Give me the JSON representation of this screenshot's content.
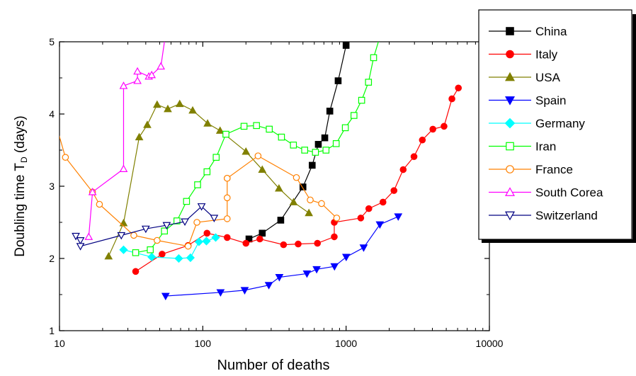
{
  "chart_data": {
    "type": "line",
    "x_scale": "log",
    "xlabel": "Number of deaths",
    "ylabel_main": "Doubling time T",
    "ylabel_sub": "D",
    "ylabel_unit": " (days)",
    "xlim": [
      10,
      10000
    ],
    "ylim": [
      1,
      5
    ],
    "x_ticks": [
      10,
      100,
      1000,
      10000
    ],
    "x_tick_labels": [
      "10",
      "100",
      "1000",
      "10000"
    ],
    "y_ticks": [
      1,
      2,
      3,
      4,
      5
    ],
    "y_tick_labels": [
      "1",
      "2",
      "3",
      "4",
      "5"
    ],
    "grid": false,
    "legend_position": "top-right, outside plot",
    "series": [
      {
        "name": "China",
        "color": "#000000",
        "marker": "square",
        "filled": true,
        "x": [
          210,
          260,
          350,
          500,
          580,
          640,
          710,
          770,
          880,
          1000
        ],
        "y": [
          2.27,
          2.35,
          2.53,
          2.99,
          3.29,
          3.58,
          3.67,
          4.04,
          4.46,
          4.95
        ],
        "tail": [
          1010,
          5.0
        ]
      },
      {
        "name": "Italy",
        "color": "#ff0000",
        "marker": "circle",
        "filled": true,
        "x": [
          34,
          52,
          79,
          107,
          148,
          200,
          250,
          366,
          463,
          631,
          827,
          827,
          1266,
          1441,
          1809,
          2158,
          2503,
          2978,
          3405,
          4032,
          4825,
          5476,
          6077
        ],
        "y": [
          1.82,
          2.06,
          2.18,
          2.35,
          2.29,
          2.21,
          2.27,
          2.19,
          2.2,
          2.21,
          2.3,
          2.5,
          2.56,
          2.69,
          2.78,
          2.94,
          3.23,
          3.41,
          3.64,
          3.79,
          3.83,
          4.21,
          4.36
        ]
      },
      {
        "name": "USA",
        "color": "#808000",
        "marker": "triangle-up",
        "filled": true,
        "x": [
          22,
          28,
          36,
          41,
          48,
          57,
          69,
          85,
          108,
          132,
          200,
          260,
          340,
          430,
          550
        ],
        "y": [
          2.03,
          2.49,
          3.68,
          3.85,
          4.13,
          4.07,
          4.14,
          4.05,
          3.87,
          3.77,
          3.48,
          3.23,
          2.97,
          2.78,
          2.63
        ]
      },
      {
        "name": "Spain",
        "color": "#0000ff",
        "marker": "triangle-down",
        "filled": true,
        "x": [
          55,
          133,
          196,
          289,
          342,
          533,
          623,
          830,
          1002,
          1326,
          1720,
          2311
        ],
        "y": [
          1.48,
          1.53,
          1.56,
          1.63,
          1.74,
          1.79,
          1.85,
          1.89,
          2.02,
          2.15,
          2.47,
          2.58
        ]
      },
      {
        "name": "Germany",
        "color": "#00ffff",
        "marker": "diamond",
        "filled": true,
        "x": [
          28,
          44,
          68,
          82,
          94,
          106,
          123
        ],
        "y": [
          2.12,
          2.02,
          2.0,
          2.01,
          2.23,
          2.24,
          2.29
        ]
      },
      {
        "name": "Iran",
        "color": "#00ff00",
        "marker": "square",
        "filled": false,
        "x": [
          34,
          43,
          54,
          66,
          77,
          92,
          107,
          124,
          145,
          194,
          237,
          291,
          354,
          429,
          514,
          611,
          724,
          853,
          988,
          1135,
          1284,
          1433,
          1556
        ],
        "y": [
          2.08,
          2.12,
          2.38,
          2.52,
          2.79,
          3.02,
          3.2,
          3.4,
          3.72,
          3.83,
          3.84,
          3.79,
          3.68,
          3.57,
          3.5,
          3.47,
          3.5,
          3.59,
          3.81,
          3.98,
          4.19,
          4.44,
          4.78
        ],
        "tail": [
          1680,
          5.0
        ]
      },
      {
        "name": "France",
        "color": "#ff8000",
        "marker": "circle",
        "filled": false,
        "x": [
          9,
          11,
          17,
          19,
          33,
          48,
          79,
          91,
          148,
          148,
          148,
          148,
          243,
          450,
          562,
          674,
          860
        ],
        "y": [
          4.0,
          3.4,
          2.92,
          2.75,
          2.32,
          2.25,
          2.17,
          2.5,
          2.55,
          2.84,
          3.11,
          3.11,
          3.42,
          3.12,
          2.81,
          2.76,
          2.56
        ]
      },
      {
        "name": "South Corea",
        "color": "#ff00ff",
        "marker": "triangle-up",
        "filled": false,
        "x": [
          16,
          17,
          28,
          28,
          35,
          35,
          42,
          44,
          51
        ],
        "y": [
          2.3,
          2.92,
          3.24,
          4.39,
          4.46,
          4.59,
          4.52,
          4.54,
          4.66
        ],
        "tail": [
          54,
          5.0
        ]
      },
      {
        "name": "Switzerland",
        "color": "#000080",
        "marker": "triangle-down",
        "filled": false,
        "x": [
          13,
          14,
          14,
          27,
          40,
          56,
          75,
          98,
          120
        ],
        "y": [
          2.31,
          2.25,
          2.17,
          2.32,
          2.41,
          2.46,
          2.51,
          2.72,
          2.56
        ]
      }
    ]
  }
}
